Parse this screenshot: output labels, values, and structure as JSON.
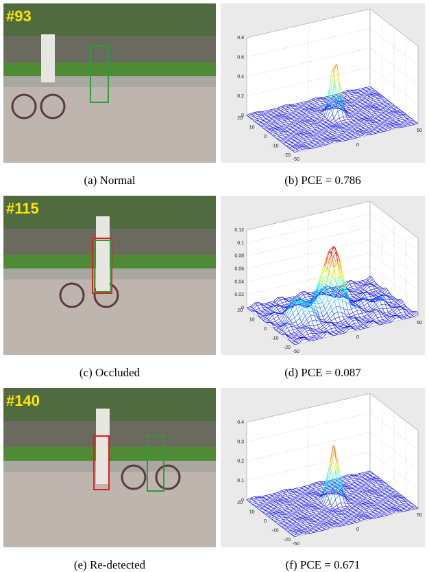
{
  "panels": [
    {
      "frame": "#93",
      "caption": "(a) Normal"
    },
    {
      "frame": "#115",
      "caption": "(c) Occluded"
    },
    {
      "frame": "#140",
      "caption": "(e) Re-detected"
    }
  ],
  "plots": [
    {
      "caption": "(b) PCE = 0.786",
      "zticks": [
        0,
        0.2,
        0.4,
        0.6,
        0.8
      ],
      "yticks": [
        20,
        10,
        0,
        -10,
        -20
      ],
      "xticks": [
        -50,
        0,
        50
      ]
    },
    {
      "caption": "(d) PCE = 0.087",
      "zticks": [
        0,
        0.02,
        0.04,
        0.06,
        0.08,
        0.1,
        0.12
      ],
      "yticks": [
        20,
        10,
        0,
        -10,
        -20
      ],
      "xticks": [
        -50,
        0,
        50
      ]
    },
    {
      "caption": "(f) PCE = 0.671",
      "zticks": [
        0,
        0.1,
        0.2,
        0.3,
        0.4
      ],
      "yticks": [
        20,
        10,
        0,
        -10,
        -20
      ],
      "xticks": [
        -50,
        0,
        50
      ]
    }
  ]
}
